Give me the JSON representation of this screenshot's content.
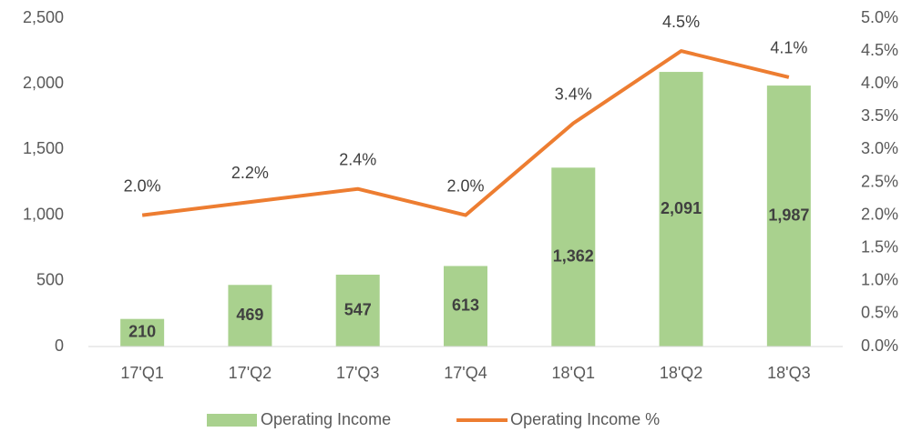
{
  "chart_data": {
    "type": "bar",
    "categories": [
      "17'Q1",
      "17'Q2",
      "17'Q3",
      "17'Q4",
      "18'Q1",
      "18'Q2",
      "18'Q3"
    ],
    "series": [
      {
        "name": "Operating Income",
        "type": "bar",
        "color": "#a9d18e",
        "values": [
          210,
          469,
          547,
          613,
          1362,
          2091,
          1987
        ],
        "value_labels": [
          "210",
          "469",
          "547",
          "613",
          "1,362",
          "2,091",
          "1,987"
        ]
      },
      {
        "name": "Operating Income %",
        "type": "line",
        "axis": "y2",
        "color": "#ed7d31",
        "values": [
          2.0,
          2.2,
          2.4,
          2.0,
          3.4,
          4.5,
          4.1
        ],
        "value_labels": [
          "2.0%",
          "2.2%",
          "2.4%",
          "2.0%",
          "3.4%",
          "4.5%",
          "4.1%"
        ]
      }
    ],
    "ylim": [
      0,
      2500
    ],
    "yticks": [
      0,
      500,
      {
        "value": 1000,
        "label": "1,000"
      },
      {
        "value": 1500,
        "label": "1,500"
      },
      {
        "value": 2000,
        "label": "2,000"
      },
      {
        "value": 2500,
        "label": "2,500"
      }
    ],
    "y2lim": [
      0,
      5
    ],
    "y2ticks": [
      {
        "value": 0,
        "label": "0.0%"
      },
      {
        "value": 0.5,
        "label": "0.5%"
      },
      {
        "value": 1,
        "label": "1.0%"
      },
      {
        "value": 1.5,
        "label": "1.5%"
      },
      {
        "value": 2,
        "label": "2.0%"
      },
      {
        "value": 2.5,
        "label": "2.5%"
      },
      {
        "value": 3,
        "label": "3.0%"
      },
      {
        "value": 3.5,
        "label": "3.5%"
      },
      {
        "value": 4,
        "label": "4.0%"
      },
      {
        "value": 4.5,
        "label": "4.5%"
      },
      {
        "value": 5,
        "label": "5.0%"
      }
    ],
    "grid": false,
    "legend": "bottom"
  }
}
